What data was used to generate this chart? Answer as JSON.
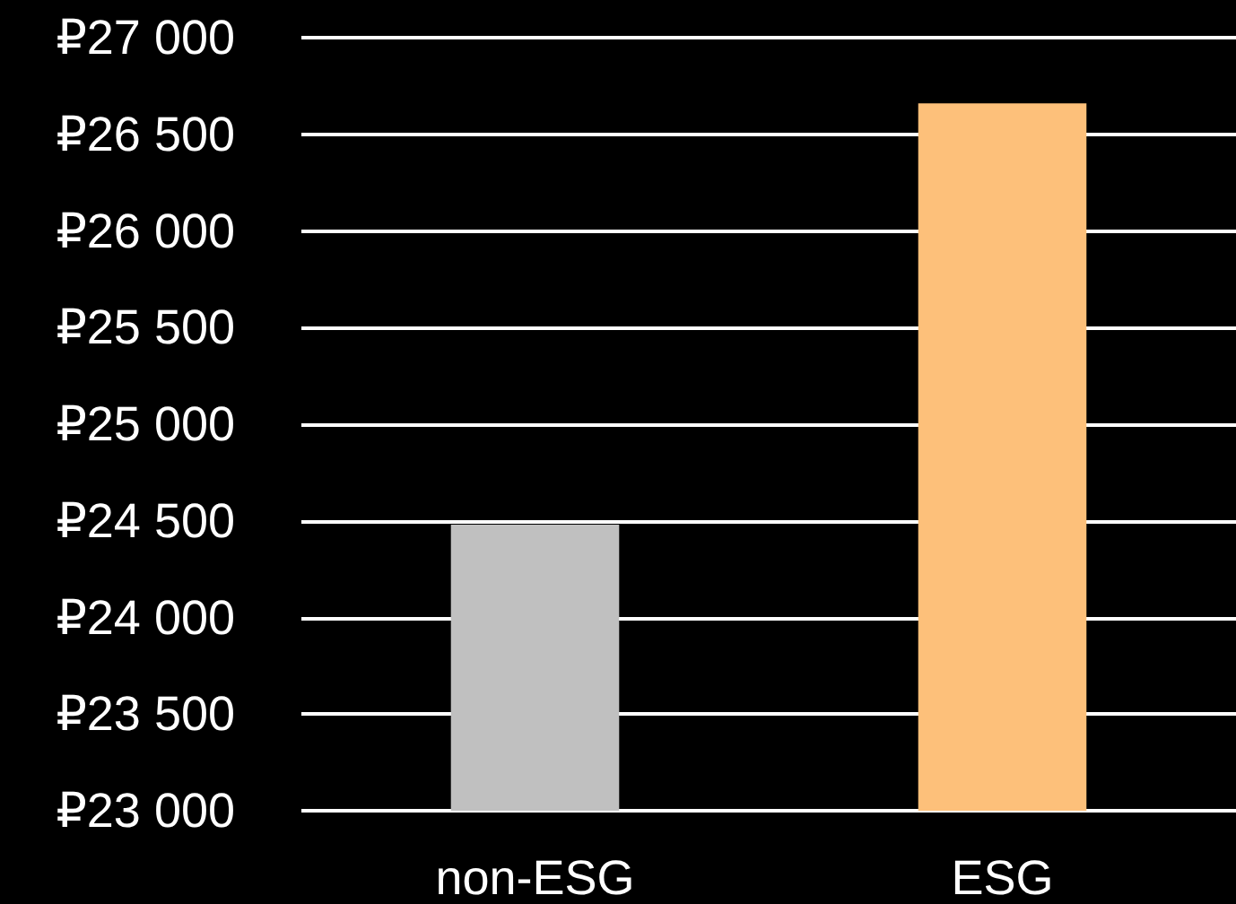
{
  "chart_data": {
    "type": "bar",
    "categories": [
      "non-ESG",
      "ESG"
    ],
    "values": [
      24480,
      26660
    ],
    "colors": [
      "#c0c0c0",
      "#fdc07a"
    ],
    "ylim": [
      23000,
      27000
    ],
    "yticks": [
      {
        "value": 23000,
        "label": "₽23 000"
      },
      {
        "value": 23500,
        "label": "₽23 500"
      },
      {
        "value": 24000,
        "label": "₽24 000"
      },
      {
        "value": 24500,
        "label": "₽24 500"
      },
      {
        "value": 25000,
        "label": "₽25 000"
      },
      {
        "value": 25500,
        "label": "₽25 500"
      },
      {
        "value": 26000,
        "label": "₽26 000"
      },
      {
        "value": 26500,
        "label": "₽26 500"
      },
      {
        "value": 27000,
        "label": "₽27 000"
      }
    ],
    "grid": "y"
  }
}
